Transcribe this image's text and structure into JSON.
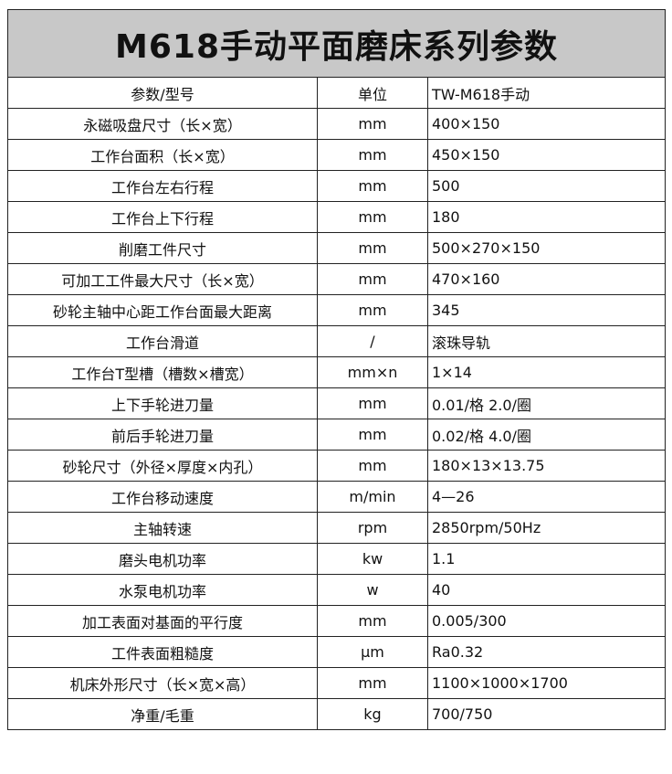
{
  "title": "M618手动平面磨床系列参数",
  "header": {
    "param": "参数/型号",
    "unit": "单位",
    "model": "TW-M618手动"
  },
  "rows": [
    {
      "param": "永磁吸盘尺寸（长×宽）",
      "unit": "mm",
      "value": "400×150"
    },
    {
      "param": "工作台面积（长×宽）",
      "unit": "mm",
      "value": "450×150"
    },
    {
      "param": "工作台左右行程",
      "unit": "mm",
      "value": "500"
    },
    {
      "param": "工作台上下行程",
      "unit": "mm",
      "value": "180"
    },
    {
      "param": "削磨工件尺寸",
      "unit": "mm",
      "value": "500×270×150"
    },
    {
      "param": "可加工工件最大尺寸（长×宽）",
      "unit": "mm",
      "value": "470×160"
    },
    {
      "param": "砂轮主轴中心距工作台面最大距离",
      "unit": "mm",
      "value": "345"
    },
    {
      "param": "工作台滑道",
      "unit": "/",
      "value": "滚珠导轨"
    },
    {
      "param": "工作台T型槽（槽数×槽宽）",
      "unit": "mm×n",
      "value": "1×14"
    },
    {
      "param": "上下手轮进刀量",
      "unit": "mm",
      "value": "0.01/格 2.0/圈"
    },
    {
      "param": "前后手轮进刀量",
      "unit": "mm",
      "value": "0.02/格 4.0/圈"
    },
    {
      "param": "砂轮尺寸（外径×厚度×内孔）",
      "unit": "mm",
      "value": "180×13×13.75"
    },
    {
      "param": "工作台移动速度",
      "unit": "m/min",
      "value": "4—26"
    },
    {
      "param": "主轴转速",
      "unit": "rpm",
      "value": "2850rpm/50Hz"
    },
    {
      "param": "磨头电机功率",
      "unit": "kw",
      "value": "1.1"
    },
    {
      "param": "水泵电机功率",
      "unit": "w",
      "value": "40"
    },
    {
      "param": "加工表面对基面的平行度",
      "unit": "mm",
      "value": "0.005/300"
    },
    {
      "param": "工件表面粗糙度",
      "unit": "μm",
      "value": "Ra0.32"
    },
    {
      "param": "机床外形尺寸（长×宽×高）",
      "unit": "mm",
      "value": "1100×1000×1700"
    },
    {
      "param": "净重/毛重",
      "unit": "kg",
      "value": "700/750"
    }
  ]
}
